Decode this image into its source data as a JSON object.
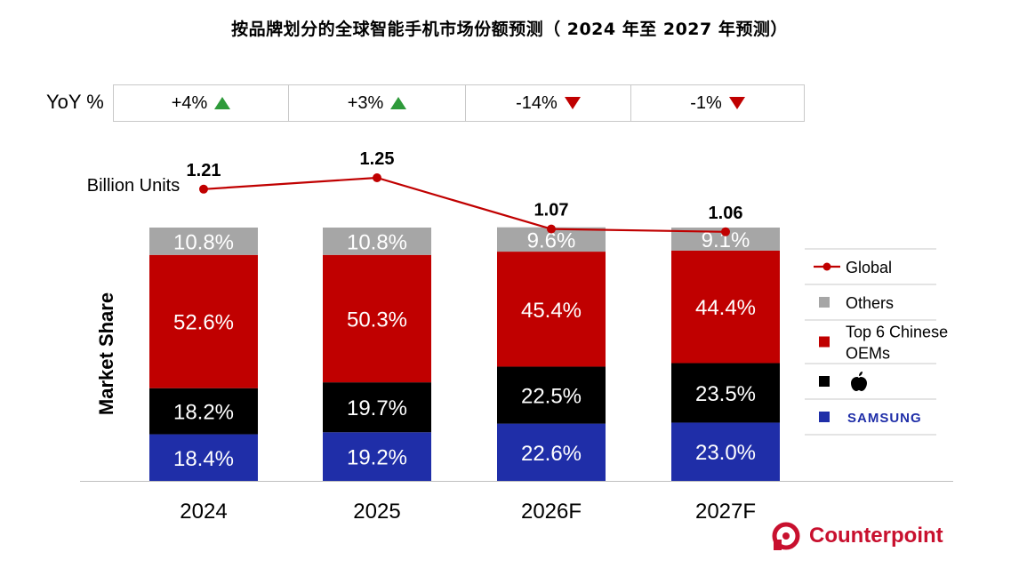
{
  "title": "按品牌划分的全球智能手机市场份额预测（ 2024 年至 2027 年预测）",
  "yoy": {
    "label": "YoY %",
    "cells": [
      {
        "text": "+4%",
        "dir": "up"
      },
      {
        "text": "+3%",
        "dir": "up"
      },
      {
        "text": "-14%",
        "dir": "down"
      },
      {
        "text": "-1%",
        "dir": "down"
      }
    ]
  },
  "brand": {
    "name": "Counterpoint",
    "color": "#c8102e"
  },
  "chart_data": {
    "type": "bar",
    "stacked": true,
    "categories": [
      "2024",
      "2025",
      "2026F",
      "2027F"
    ],
    "ylabel": "Market Share",
    "series": [
      {
        "name": "SAMSUNG",
        "color": "#1f2ea8",
        "values": [
          18.4,
          19.2,
          22.6,
          23.0
        ],
        "labels": [
          "18.4%",
          "19.2%",
          "22.6%",
          "23.0%"
        ]
      },
      {
        "name": "Apple",
        "color": "#000000",
        "values": [
          18.2,
          19.7,
          22.5,
          23.5
        ],
        "labels": [
          "18.2%",
          "19.7%",
          "22.5%",
          "23.5%"
        ]
      },
      {
        "name": "Top 6 Chinese OEMs",
        "color": "#c00000",
        "values": [
          52.6,
          50.3,
          45.4,
          44.4
        ],
        "labels": [
          "52.6%",
          "50.3%",
          "45.4%",
          "44.4%"
        ]
      },
      {
        "name": "Others",
        "color": "#a6a6a6",
        "values": [
          10.8,
          10.8,
          9.6,
          9.1
        ],
        "labels": [
          "10.8%",
          "10.8%",
          "9.6%",
          "9.1%"
        ]
      }
    ],
    "line": {
      "name": "Global",
      "unit_label": "Billion Units",
      "color": "#c00000",
      "values": [
        1.21,
        1.25,
        1.07,
        1.06
      ],
      "labels": [
        "1.21",
        "1.25",
        "1.07",
        "1.06"
      ],
      "ylim": [
        0.85,
        1.35
      ]
    },
    "legend": {
      "position": "right",
      "items": [
        {
          "key": "Global",
          "lines": [
            "Global"
          ],
          "marker": "line",
          "color": "#c00000"
        },
        {
          "key": "Others",
          "lines": [
            "Others"
          ],
          "marker": "square",
          "color": "#a6a6a6"
        },
        {
          "key": "Top 6 Chinese OEMs",
          "lines": [
            "Top 6 Chinese",
            "OEMs"
          ],
          "marker": "square",
          "color": "#c00000"
        },
        {
          "key": "Apple",
          "lines": [
            ""
          ],
          "icon": "apple-icon",
          "marker": "square",
          "color": "#000000"
        },
        {
          "key": "SAMSUNG",
          "lines": [
            "SAMSUNG"
          ],
          "marker": "square",
          "color": "#1f2ea8",
          "wordmark": true
        }
      ]
    }
  }
}
